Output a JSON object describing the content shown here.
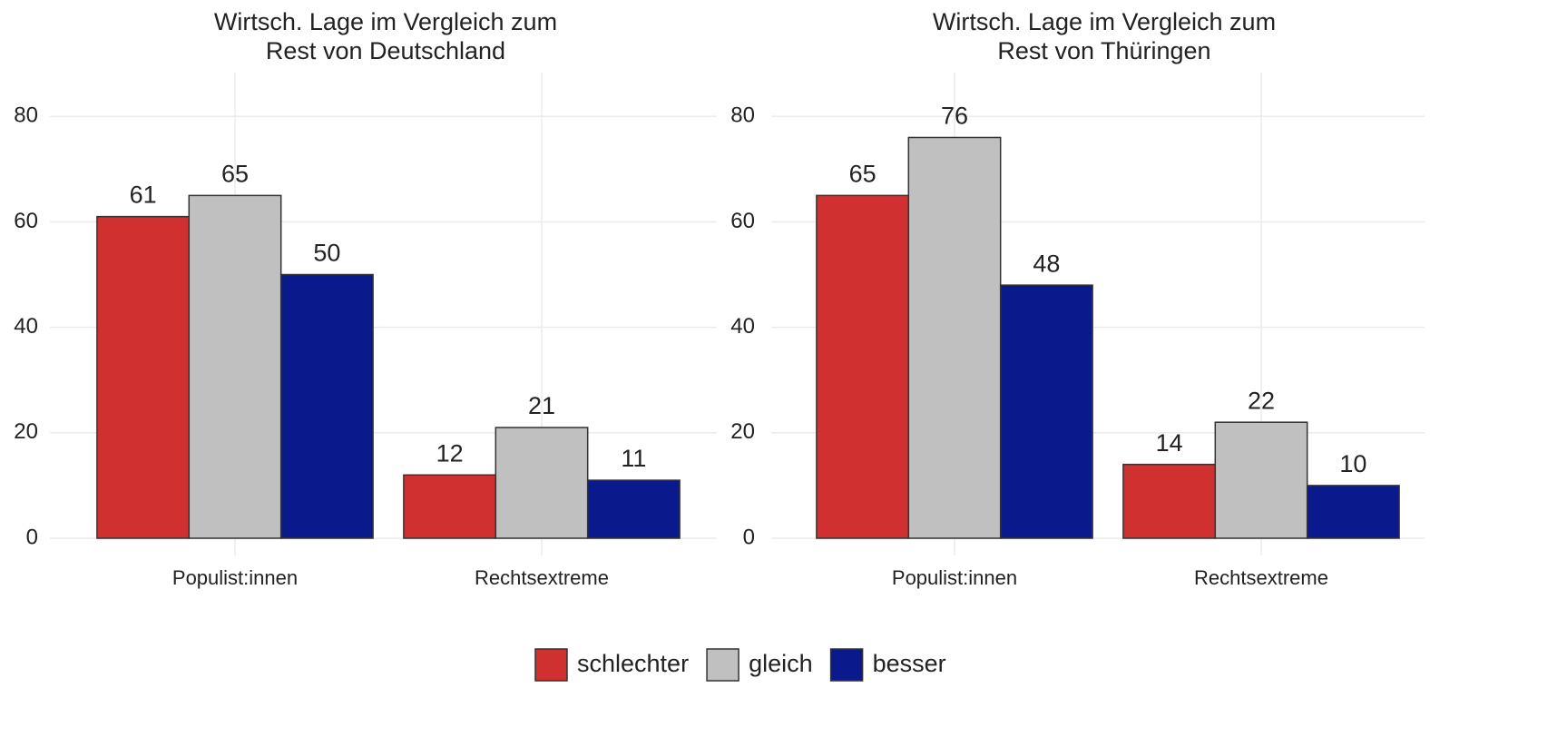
{
  "chart_data": [
    {
      "type": "bar",
      "title": [
        "Wirtsch. Lage im Vergleich zum",
        "Rest von Deutschland"
      ],
      "categories": [
        "Populist:innen",
        "Rechtsextreme"
      ],
      "series": [
        {
          "name": "schlechter",
          "color": "#d03030",
          "values": [
            61,
            12
          ]
        },
        {
          "name": "gleich",
          "color": "#c0c0c0",
          "values": [
            65,
            21
          ]
        },
        {
          "name": "besser",
          "color": "#0a1a8c",
          "values": [
            50,
            11
          ]
        }
      ],
      "ylim": [
        0,
        84
      ],
      "yticks": [
        0,
        20,
        40,
        60,
        80
      ],
      "grid": true
    },
    {
      "type": "bar",
      "title": [
        "Wirtsch. Lage im Vergleich zum",
        "Rest von Thüringen"
      ],
      "categories": [
        "Populist:innen",
        "Rechtsextreme"
      ],
      "series": [
        {
          "color": "#d03030",
          "values": [
            65,
            14
          ]
        },
        {
          "color": "#c0c0c0",
          "values": [
            76,
            22
          ]
        },
        {
          "color": "#0a1a8c",
          "values": [
            48,
            10
          ]
        }
      ],
      "ylim": [
        0,
        84
      ],
      "yticks": [
        0,
        20,
        40,
        60,
        80
      ],
      "grid": true
    }
  ]
}
